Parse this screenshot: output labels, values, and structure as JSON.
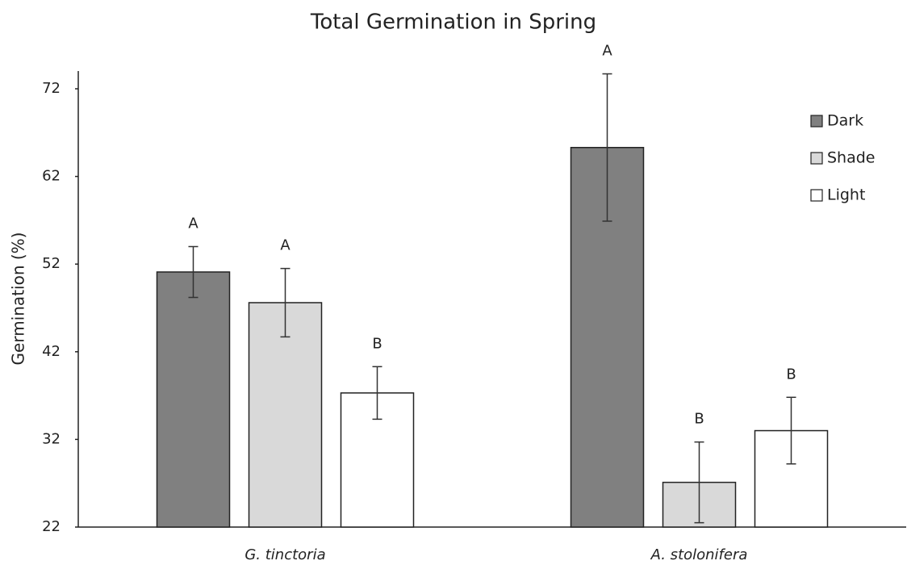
{
  "chart_data": {
    "type": "bar",
    "title": "Total Germination in Spring",
    "ylabel": "Germination (%)",
    "categories": [
      "G. tinctoria",
      "A. stolonifera"
    ],
    "series": [
      {
        "name": "Dark",
        "color": "#808080",
        "values": [
          51.1,
          65.3
        ],
        "errors": [
          2.9,
          8.4
        ],
        "letters": [
          "A",
          "A"
        ]
      },
      {
        "name": "Shade",
        "color": "#d9d9d9",
        "values": [
          47.6,
          27.1
        ],
        "errors": [
          3.9,
          4.6
        ],
        "letters": [
          "A",
          "B"
        ]
      },
      {
        "name": "Light",
        "color": "#ffffff",
        "values": [
          37.3,
          33.0
        ],
        "errors": [
          3.0,
          3.8
        ],
        "letters": [
          "B",
          "B"
        ]
      }
    ],
    "ylim": [
      22,
      72
    ],
    "yticks": [
      22,
      32,
      42,
      52,
      62,
      72
    ],
    "grid": false,
    "legend": "upper right"
  }
}
